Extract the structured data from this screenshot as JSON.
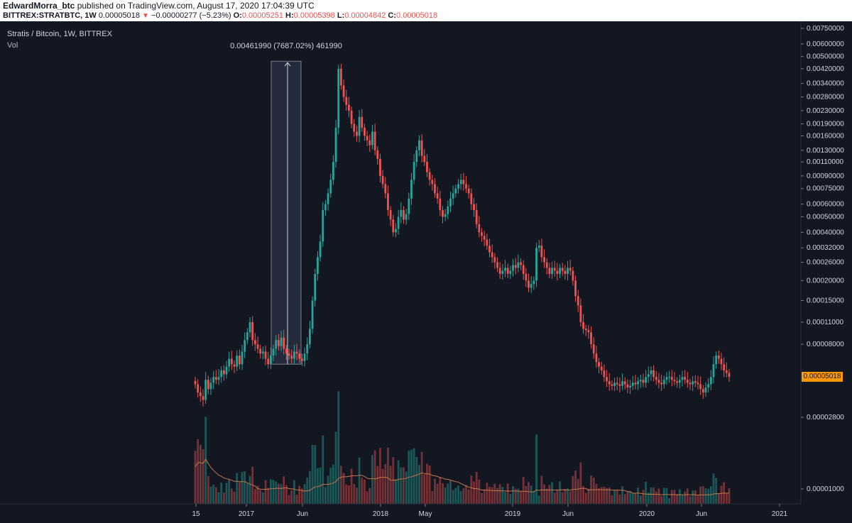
{
  "header": {
    "author": "EdwardMorra_btc",
    "published": "published on TradingView.com, August 17, 2020 17:04:39 UTC",
    "symbol": "BITTREX:STRATBTC, 1W",
    "last": "0.00005018",
    "change": "−0.00000277 (−5.23%)",
    "o_label": "O:",
    "o_value": "0.00005251",
    "h_label": "H:",
    "h_value": "0.00005398",
    "l_label": "L:",
    "l_value": "0.00004842",
    "c_label": "C:",
    "c_value": "0.00005018"
  },
  "legend": {
    "title": "Stratis / Bitcoin, 1W, BITTREX",
    "volume": "Vol"
  },
  "measure_label": "0.00461990 (7687.02%) 461990",
  "current_price_label": "0.00005018",
  "colors": {
    "background": "#131722",
    "up": "#26a69a",
    "down": "#ef5350",
    "measure_box": "#2a3244",
    "price_tag": "#ff9800",
    "ma_line": "#c0784a"
  },
  "chart_data": {
    "type": "candlestick",
    "symbol": "STRAT/BTC",
    "interval": "1W",
    "exchange": "BITTREX",
    "scale": "log",
    "y_ticks": [
      "0.00750000",
      "0.00600000",
      "0.00500000",
      "0.00420000",
      "0.00340000",
      "0.00280000",
      "0.00230000",
      "0.00190000",
      "0.00160000",
      "0.00130000",
      "0.00110000",
      "0.00090000",
      "0.00075000",
      "0.00060000",
      "0.00050000",
      "0.00040000",
      "0.00032000",
      "0.00026000",
      "0.00020000",
      "0.00015000",
      "0.00011000",
      "0.00008000",
      "0.00005018",
      "0.00002800",
      "0.00001000"
    ],
    "x_ticks": [
      "15",
      "2017",
      "Jun",
      "2018",
      "May",
      "2019",
      "Jun",
      "2020",
      "Jun",
      "2021"
    ],
    "measure": {
      "from": "0.00006010",
      "to": "0.00468000",
      "change": "0.00461990",
      "percent": "7687.02%",
      "ticks": "461990"
    },
    "closes": [
      4.5e-05,
      4e-05,
      3.8e-05,
      3.6e-05,
      4.8e-05,
      4.2e-05,
      4.6e-05,
      5e-05,
      4.8e-05,
      5e-05,
      5.5e-05,
      5.2e-05,
      5.8e-05,
      6.5e-05,
      6e-05,
      5.8e-05,
      6.8e-05,
      6e-05,
      7.2e-05,
      8.5e-05,
      9.5e-05,
      0.00011,
      8.5e-05,
      8e-05,
      7.5e-05,
      7e-05,
      7.2e-05,
      6.5e-05,
      6e-05,
      6.8e-05,
      7.5e-05,
      8.5e-05,
      7.8e-05,
      8.8e-05,
      7.5e-05,
      7e-05,
      6.8e-05,
      6.5e-05,
      7.2e-05,
      7e-05,
      6.5e-05,
      6.3e-05,
      7e-05,
      8e-05,
      0.0001,
      0.00015,
      0.00022,
      0.00028,
      0.00035,
      0.00055,
      0.0006,
      0.0007,
      0.00085,
      0.0011,
      0.0018,
      0.0042,
      0.0033,
      0.0028,
      0.0025,
      0.0023,
      0.0019,
      0.0017,
      0.0016,
      0.0021,
      0.0018,
      0.0016,
      0.0015,
      0.0014,
      0.0017,
      0.0013,
      0.00115,
      0.0009,
      0.0008,
      0.0007,
      0.00055,
      0.00048,
      0.0004,
      0.00042,
      0.0005,
      0.00055,
      0.00048,
      0.00052,
      0.00065,
      0.00085,
      0.0011,
      0.0013,
      0.0015,
      0.0012,
      0.0011,
      0.00095,
      0.00085,
      0.0008,
      0.0007,
      0.00065,
      0.00055,
      0.0005,
      0.00052,
      0.00058,
      0.00065,
      0.0007,
      0.00075,
      0.0008,
      0.00085,
      0.0008,
      0.00075,
      0.0007,
      0.0006,
      0.00055,
      0.00045,
      0.0004,
      0.00038,
      0.00036,
      0.00033,
      0.0003,
      0.00028,
      0.00026,
      0.00024,
      0.00022,
      0.00023,
      0.00024,
      0.00022,
      0.00023,
      0.00025,
      0.00024,
      0.00026,
      0.00025,
      0.00022,
      0.0002,
      0.00018,
      0.00019,
      0.0002,
      0.00032,
      0.00033,
      0.00028,
      0.00026,
      0.00024,
      0.00022,
      0.00024,
      0.00023,
      0.00022,
      0.00024,
      0.00023,
      0.00022,
      0.00024,
      0.00023,
      0.0002,
      0.00016,
      0.00014,
      0.00011,
      0.0001,
      9.8e-05,
      9.5e-05,
      8e-05,
      7e-05,
      6.2e-05,
      5.8e-05,
      5.5e-05,
      5e-05,
      4.7e-05,
      4.5e-05,
      4.4e-05,
      4.6e-05,
      4.5e-05,
      4.4e-05,
      4.7e-05,
      4.5e-05,
      4.3e-05,
      4.4e-05,
      4.6e-05,
      4.5e-05,
      4.7e-05,
      4.8e-05,
      4.6e-05,
      5e-05,
      5.2e-05,
      5.5e-05,
      5e-05,
      4.8e-05,
      4.6e-05,
      4.5e-05,
      4.8e-05,
      5e-05,
      5e-05,
      4.8e-05,
      4.7e-05,
      4.6e-05,
      4.8e-05,
      5e-05,
      4.8e-05,
      4.6e-05,
      4.5e-05,
      4.7e-05,
      4.6e-05,
      4.5e-05,
      4.2e-05,
      4e-05,
      4.3e-05,
      4.5e-05,
      5e-05,
      6e-05,
      6.8e-05,
      6.5e-05,
      6e-05,
      5.5e-05,
      5.3e-05,
      5.018e-05
    ]
  }
}
